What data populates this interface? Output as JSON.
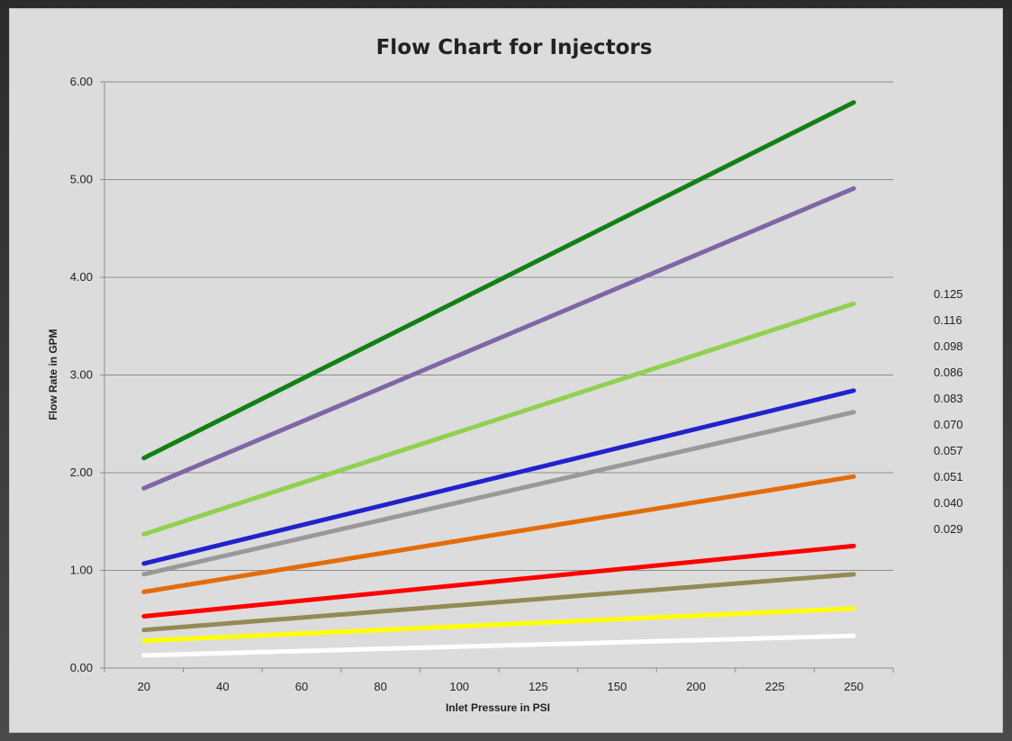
{
  "chart_data": {
    "type": "line",
    "title": "Flow Chart for Injectors",
    "xlabel": "Inlet Pressure in PSI",
    "ylabel": "Flow Rate in GPM",
    "categories": [
      "20",
      "40",
      "60",
      "80",
      "100",
      "125",
      "150",
      "200",
      "225",
      "250"
    ],
    "y_ticks": [
      "0.00",
      "1.00",
      "2.00",
      "3.00",
      "4.00",
      "5.00",
      "6.00"
    ],
    "ylim": [
      0,
      6
    ],
    "grid": true,
    "legend_position": "right",
    "legend": [
      "0.125",
      "0.116",
      "0.098",
      "0.086",
      "0.083",
      "0.070",
      "0.057",
      "0.051",
      "0.040",
      "0.029"
    ],
    "series": [
      {
        "color": "#138013",
        "start": 2.15,
        "end": 5.79
      },
      {
        "color": "#7f66a6",
        "start": 1.84,
        "end": 4.91
      },
      {
        "color": "#92d050",
        "start": 1.37,
        "end": 3.73
      },
      {
        "color": "#2222cc",
        "start": 1.07,
        "end": 2.84
      },
      {
        "color": "#999999",
        "start": 0.96,
        "end": 2.62
      },
      {
        "color": "#e36c09",
        "start": 0.78,
        "end": 1.96
      },
      {
        "color": "#ff0000",
        "start": 0.53,
        "end": 1.25
      },
      {
        "color": "#948a54",
        "start": 0.39,
        "end": 0.96
      },
      {
        "color": "#ffff00",
        "start": 0.28,
        "end": 0.61
      },
      {
        "color": "#ffffff",
        "start": 0.13,
        "end": 0.33
      }
    ]
  }
}
